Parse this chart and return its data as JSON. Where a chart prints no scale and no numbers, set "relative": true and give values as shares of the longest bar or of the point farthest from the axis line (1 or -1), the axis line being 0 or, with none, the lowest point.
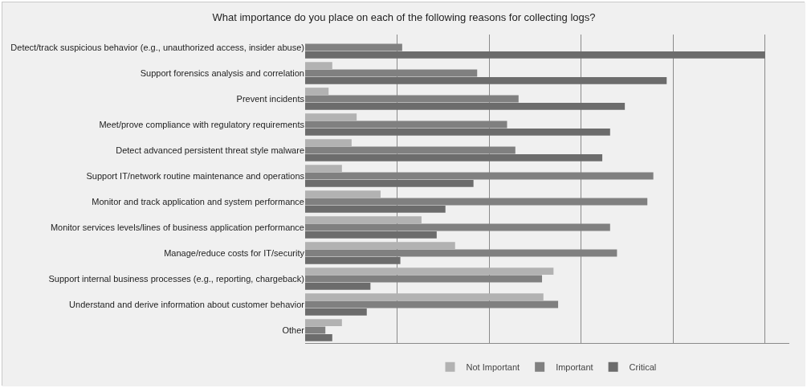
{
  "chart_data": {
    "type": "bar",
    "orientation": "horizontal",
    "relative": true,
    "title": "What importance do you place on each of the following reasons for collecting logs?",
    "categories": [
      "Detect/track suspicious behavior (e.g., unauthorized access, insider abuse)",
      "Support forensics analysis and correlation",
      "Prevent incidents",
      "Meet/prove compliance with regulatory requirements",
      "Detect advanced persistent threat style malware",
      "Support IT/network routine maintenance and operations",
      "Monitor and track application and system performance",
      "Monitor services levels/lines of business application performance",
      "Manage/reduce costs for IT/security",
      "Support internal business processes (e.g., reporting, chargeback)",
      "Understand and derive information about customer behavior",
      "Other"
    ],
    "series": [
      {
        "name": "Not Important",
        "color": "#b2b2b2",
        "values": [
          0,
          0.059,
          0.051,
          0.112,
          0.101,
          0.08,
          0.164,
          0.253,
          0.326,
          0.54,
          0.518,
          0.08
        ]
      },
      {
        "name": "Important",
        "color": "#808080",
        "values": [
          0.211,
          0.374,
          0.464,
          0.439,
          0.457,
          0.757,
          0.744,
          0.663,
          0.678,
          0.515,
          0.55,
          0.044
        ]
      },
      {
        "name": "Critical",
        "color": "#6c6c6c",
        "values": [
          1,
          0.786,
          0.695,
          0.663,
          0.646,
          0.366,
          0.305,
          0.286,
          0.207,
          0.142,
          0.134,
          0.059
        ]
      }
    ],
    "grid": "x",
    "legend": "bottom"
  }
}
